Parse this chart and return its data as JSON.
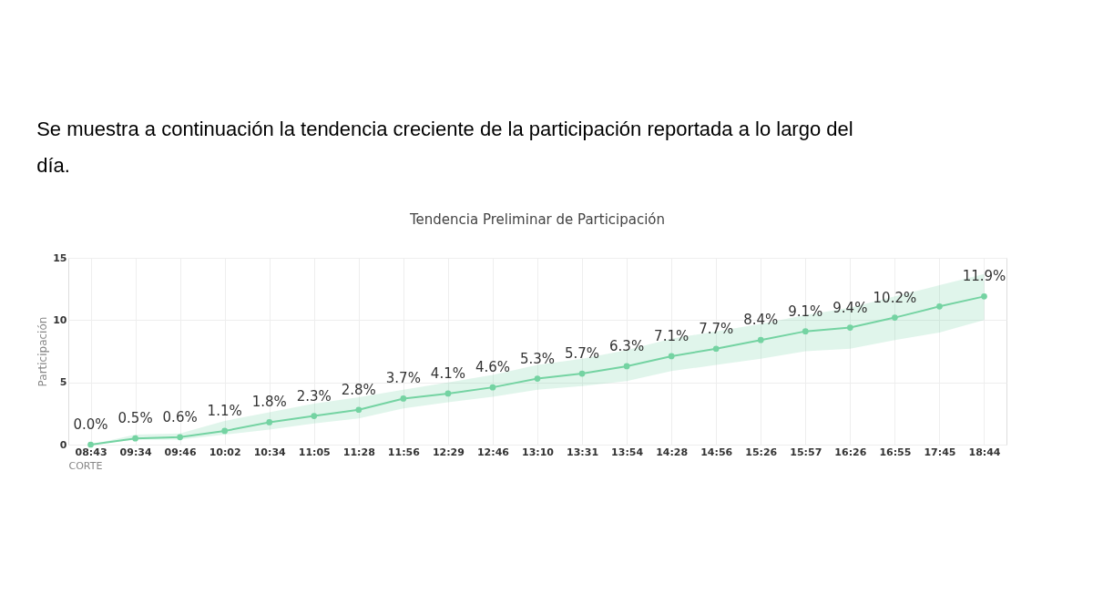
{
  "chart_data": {
    "type": "line",
    "title": "Tendencia Preliminar de Participación",
    "xlabel": "CORTE",
    "ylabel": "Participación",
    "annotations": [
      "Se muestra a continuación la tendencia creciente de la participación reportada a lo largo del día."
    ],
    "categories": [
      "08:43",
      "09:34",
      "09:46",
      "10:02",
      "10:34",
      "11:05",
      "11:28",
      "11:56",
      "12:29",
      "12:46",
      "13:10",
      "13:31",
      "13:54",
      "14:28",
      "14:56",
      "15:26",
      "15:57",
      "16:26",
      "16:55",
      "17:45",
      "18:44"
    ],
    "series": [
      {
        "color": "#74d3a2",
        "values": [
          0.0,
          0.5,
          0.6,
          1.1,
          1.8,
          2.3,
          2.8,
          3.7,
          4.1,
          4.6,
          5.3,
          5.7,
          6.3,
          7.1,
          7.7,
          8.4,
          9.1,
          9.4,
          10.2,
          11.1,
          11.9
        ],
        "lower": [
          0.0,
          0.4,
          0.4,
          0.8,
          1.2,
          1.7,
          2.1,
          2.9,
          3.4,
          3.85,
          4.4,
          4.7,
          5.1,
          5.9,
          6.4,
          6.9,
          7.5,
          7.7,
          8.4,
          9.0,
          10.0
        ],
        "upper": [
          0.0,
          0.8,
          0.9,
          1.9,
          2.6,
          3.3,
          3.8,
          4.4,
          5.0,
          5.6,
          6.4,
          6.9,
          7.6,
          8.5,
          9.1,
          9.7,
          10.4,
          11.0,
          11.9,
          12.8,
          13.7
        ],
        "value_labels": [
          "0.0%",
          "0.5%",
          "0.6%",
          "1.1%",
          "1.8%",
          "2.3%",
          "2.8%",
          "3.7%",
          "4.1%",
          "4.6%",
          "5.3%",
          "5.7%",
          "6.3%",
          "7.1%",
          "7.7%",
          "8.4%",
          "9.1%",
          "9.4%",
          "10.2%",
          null,
          "11.9%"
        ]
      }
    ],
    "ylim": [
      0,
      15
    ],
    "yticks": [
      0,
      5,
      10,
      15
    ],
    "grid": true,
    "marker": "circle",
    "line_style": "solid"
  }
}
